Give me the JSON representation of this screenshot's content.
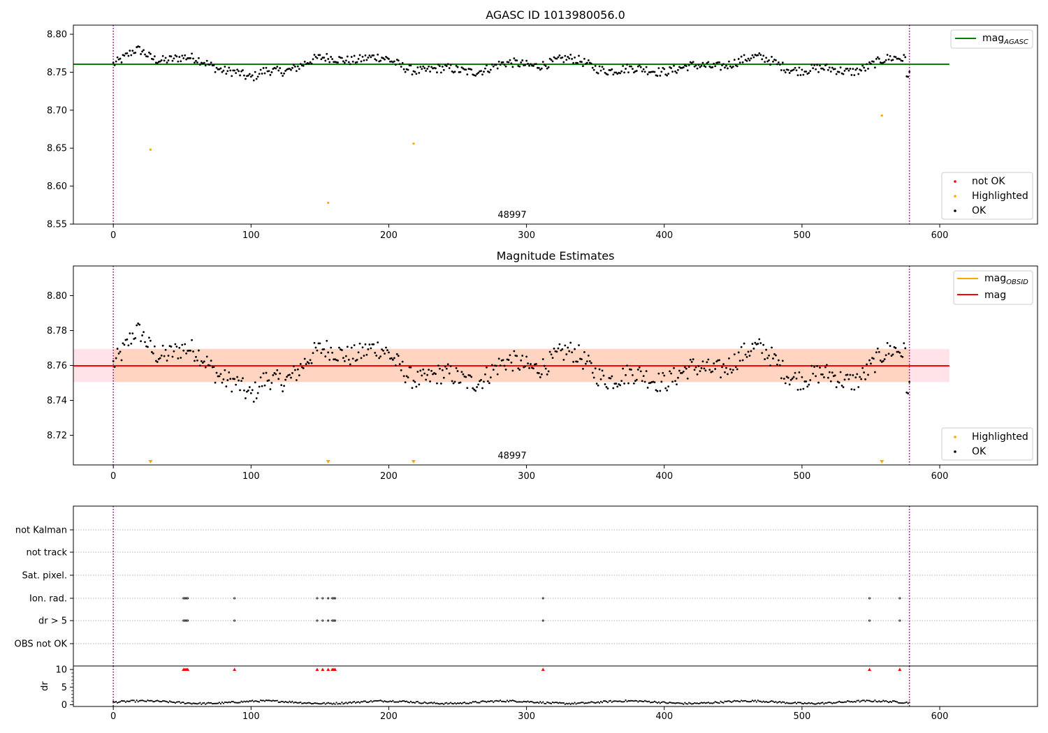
{
  "colors": {
    "ok": "#000000",
    "highlighted": "#ffa500",
    "not_ok": "#ff0000",
    "mag_agasc": "#008000",
    "mag_obsid": "#ffa500",
    "mag": "#ff0000",
    "boundary": "#800080",
    "band_outer": "#ffc0cb",
    "band_inner": "#ffd1b8",
    "grid": "#b0b0b0"
  },
  "chart_data": [
    {
      "type": "scatter",
      "title": "AGASC ID 1013980056.0",
      "annotation": "48997",
      "xlim": [
        -29,
        671
      ],
      "ylim": [
        8.55,
        8.812
      ],
      "xticks": [
        "0",
        "100",
        "200",
        "300",
        "400",
        "500",
        "600"
      ],
      "yticks": [
        "8.55",
        "8.60",
        "8.65",
        "8.70",
        "8.75",
        "8.80"
      ],
      "grid": false,
      "legends": [
        {
          "placement": "upper-right",
          "entries": [
            {
              "label": "mag",
              "sub": "AGASC"
            }
          ]
        },
        {
          "placement": "lower-right",
          "entries": [
            {
              "label": "not OK"
            },
            {
              "label": "Highlighted"
            },
            {
              "label": "OK"
            }
          ]
        }
      ],
      "mag_agasc": 8.7605,
      "obs_boundaries": [
        0,
        578
      ],
      "highlighted_points": [
        [
          27,
          8.648
        ],
        [
          156,
          8.578
        ],
        [
          218,
          8.656
        ],
        [
          558,
          8.693
        ]
      ],
      "series_ok_note": "579 OK samples; values near 8.76, range 8.735-8.782, slow oscillation with dip near x=300 and x=430"
    },
    {
      "type": "scatter",
      "title": "Magnitude Estimates",
      "annotation": "48997",
      "xlim": [
        -29,
        671
      ],
      "ylim": [
        8.703,
        8.817
      ],
      "xticks": [
        "0",
        "100",
        "200",
        "300",
        "400",
        "500",
        "600"
      ],
      "yticks": [
        "8.72",
        "8.74",
        "8.76",
        "8.78",
        "8.80"
      ],
      "grid": false,
      "legends": [
        {
          "placement": "upper-right",
          "entries": [
            {
              "label": "mag",
              "sub": "OBSID"
            },
            {
              "label": "mag"
            }
          ]
        },
        {
          "placement": "lower-right",
          "entries": [
            {
              "label": "Highlighted"
            },
            {
              "label": "OK"
            }
          ]
        }
      ],
      "mag": 8.7598,
      "mag_obsid": 8.7598,
      "band_outer": [
        8.7505,
        8.7695
      ],
      "band_inner": [
        8.7505,
        8.7695
      ],
      "highlighted_x_below_axis": [
        27,
        156,
        218,
        558
      ]
    },
    {
      "type": "scatter",
      "title": "",
      "xlim": [
        -29,
        671
      ],
      "xticks": [
        "0",
        "100",
        "200",
        "300",
        "400",
        "500",
        "600"
      ],
      "flag_rows": [
        "not Kalman",
        "not track",
        "Sat. pixel.",
        "Ion. rad.",
        "dr > 5",
        "OBS not OK"
      ],
      "grid": true,
      "ion_rad_x": [
        51,
        52,
        53,
        54,
        88,
        148,
        152,
        156,
        159,
        160,
        161,
        312,
        549,
        571
      ],
      "dr_gt5_x": [
        51,
        52,
        53,
        54,
        88,
        148,
        152,
        156,
        159,
        160,
        161,
        312,
        549,
        571
      ]
    },
    {
      "type": "scatter",
      "title": "",
      "ylabel": "dr",
      "xlim": [
        -29,
        671
      ],
      "ylim": [
        -0.5,
        11
      ],
      "xticks": [
        "0",
        "100",
        "200",
        "300",
        "400",
        "500",
        "600"
      ],
      "yticks": [
        "0",
        "5",
        "10"
      ],
      "dr_capped_x": [
        51,
        52,
        53,
        54,
        88,
        148,
        152,
        156,
        159,
        160,
        161,
        312,
        549,
        571
      ],
      "dr_cap": 10,
      "dr_typical_range": [
        0.2,
        1.5
      ]
    }
  ]
}
